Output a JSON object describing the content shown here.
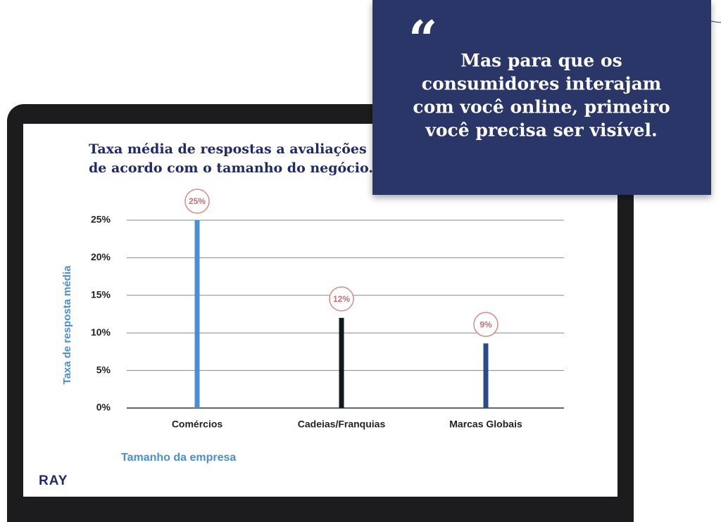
{
  "quote": {
    "mark": "“",
    "lines": [
      "Mas para que os",
      "consumidores interajam",
      "com você online, primeiro",
      "você precisa ser visível."
    ]
  },
  "logo": "RAY",
  "chart_data": {
    "type": "bar",
    "title": [
      "Taxa média de respostas a avaliações",
      "de acordo com o tamanho do negócio."
    ],
    "x_label": "Tamanho da empresa",
    "y_label": "Taxa de resposta média",
    "categories": [
      "Comércios",
      "Cadeias/Franquias",
      "Marcas Globais"
    ],
    "values": [
      25,
      12,
      8.6
    ],
    "value_labels": [
      "25%",
      "12%",
      "9%"
    ],
    "colors": [
      "#4a8fd6",
      "#101820",
      "#2b4a8e"
    ],
    "ylim": [
      0,
      25
    ],
    "yticks": [
      {
        "value": 0,
        "label": "0%"
      },
      {
        "value": 5,
        "label": "5%"
      },
      {
        "value": 10,
        "label": "10%"
      },
      {
        "value": 15,
        "label": "15%"
      },
      {
        "value": 20,
        "label": "20%"
      },
      {
        "value": 25,
        "label": "25%"
      }
    ],
    "grid": true
  }
}
